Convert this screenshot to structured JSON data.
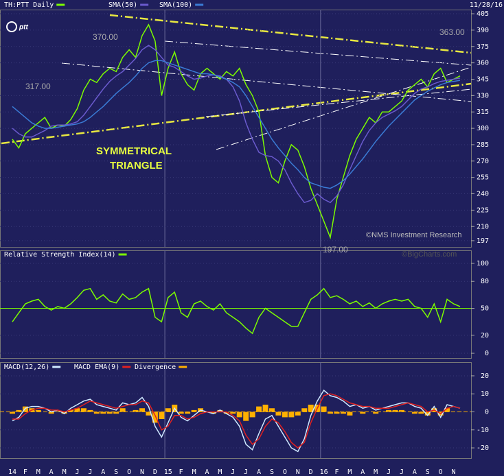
{
  "chart_data": [
    {
      "type": "line",
      "subtitle": "11/28/16",
      "logo": "ptt",
      "ylim": [
        191.3,
        408.8
      ],
      "yticks": [
        197,
        210,
        225,
        240,
        255,
        270,
        285,
        300,
        315,
        330,
        345,
        360,
        375,
        390,
        405
      ],
      "grid": true,
      "series": [
        {
          "name": "TH:PTT Daily",
          "color": "#7cfc00",
          "values": [
            290,
            282,
            295,
            300,
            305,
            310,
            300,
            303,
            302,
            308,
            318,
            335,
            345,
            342,
            350,
            355,
            352,
            365,
            372,
            365,
            385,
            395,
            380,
            330,
            355,
            370,
            350,
            340,
            335,
            350,
            355,
            350,
            345,
            352,
            348,
            355,
            340,
            330,
            315,
            275,
            255,
            250,
            270,
            285,
            280,
            265,
            245,
            230,
            215,
            200,
            235,
            255,
            275,
            290,
            300,
            310,
            305,
            315,
            315,
            320,
            325,
            335,
            340,
            345,
            338,
            350,
            355,
            342,
            345,
            348
          ]
        },
        {
          "name": "SMA(50)",
          "color": "#6a5acd",
          "values": [
            300,
            295,
            292,
            292,
            295,
            298,
            302,
            303,
            303,
            304,
            306,
            312,
            320,
            328,
            336,
            343,
            348,
            352,
            358,
            364,
            372,
            376,
            372,
            365,
            358,
            356,
            352,
            348,
            345,
            346,
            348,
            349,
            348,
            345,
            338,
            325,
            305,
            290,
            278,
            275,
            274,
            270,
            262,
            250,
            240,
            232,
            234,
            240,
            235,
            232,
            238,
            248,
            262,
            275,
            288,
            298,
            305,
            310,
            313,
            316,
            320,
            326,
            332,
            336,
            338,
            341,
            343,
            344,
            345,
            346
          ]
        },
        {
          "name": "SMA(100)",
          "color": "#3a7bd5",
          "values": [
            320,
            315,
            310,
            305,
            302,
            300,
            300,
            301,
            302,
            303,
            304,
            306,
            310,
            315,
            320,
            326,
            332,
            337,
            342,
            348,
            355,
            360,
            362,
            362,
            360,
            358,
            356,
            354,
            352,
            350,
            350,
            349,
            347,
            345,
            342,
            338,
            330,
            320,
            310,
            300,
            290,
            282,
            275,
            268,
            262,
            255,
            250,
            248,
            246,
            245,
            248,
            252,
            258,
            265,
            272,
            280,
            288,
            295,
            302,
            308,
            314,
            320,
            326,
            330,
            334,
            337,
            340,
            342,
            343,
            344
          ]
        }
      ],
      "annotations": [
        "370.00",
        "317.00",
        "197.00",
        "363.00",
        "SYMMETRICAL",
        "TRIANGLE",
        "©NMS Investment Research"
      ]
    },
    {
      "type": "line",
      "ylim": [
        -5.3,
        114.5
      ],
      "yticks": [
        0,
        20,
        50,
        80,
        100
      ],
      "hline": 50,
      "grid": true,
      "series": [
        {
          "name": "Relative Strength Index(14)",
          "color": "#7cfc00",
          "values": [
            35,
            45,
            55,
            58,
            60,
            52,
            48,
            52,
            50,
            55,
            62,
            70,
            72,
            60,
            65,
            58,
            56,
            66,
            60,
            62,
            68,
            72,
            40,
            35,
            62,
            68,
            45,
            40,
            55,
            58,
            52,
            48,
            55,
            45,
            40,
            35,
            28,
            22,
            40,
            50,
            45,
            40,
            35,
            30,
            30,
            45,
            60,
            65,
            72,
            62,
            64,
            60,
            55,
            58,
            52,
            56,
            50,
            55,
            58,
            60,
            58,
            60,
            52,
            50,
            40,
            55,
            35,
            60,
            55,
            52
          ]
        }
      ],
      "annotations": [
        "©BigCharts.com"
      ]
    },
    {
      "type": "line",
      "ylim": [
        -25.7,
        27.6
      ],
      "yticks": [
        -20,
        -10,
        0,
        10,
        20
      ],
      "hline": 0,
      "grid": true,
      "categories": [
        "14",
        null,
        "F",
        null,
        "M",
        null,
        "A",
        null,
        "M",
        null,
        "J",
        null,
        "J",
        null,
        "A",
        null,
        "S",
        null,
        "O",
        null,
        "N",
        null,
        "D",
        null,
        "15",
        null,
        "F",
        null,
        "M",
        null,
        "A",
        null,
        "M",
        null,
        "J",
        null,
        "J",
        null,
        "A",
        null,
        "S",
        null,
        "O",
        null,
        "N",
        null,
        "D",
        null,
        "16",
        null,
        "F",
        null,
        "M",
        null,
        "A",
        null,
        "M",
        null,
        "J",
        null,
        "J",
        null,
        "A",
        null,
        "S",
        null,
        "O",
        null,
        "N",
        null
      ],
      "series": [
        {
          "name": "MACD(12,26)",
          "color": "#cfe8ff",
          "values": [
            -5,
            -3,
            2,
            3,
            3,
            2,
            0,
            1,
            -1,
            2,
            4,
            6,
            7,
            4,
            3,
            2,
            1,
            5,
            4,
            5,
            8,
            3,
            -8,
            -14,
            -6,
            2,
            -3,
            -5,
            -2,
            1,
            0,
            -1,
            1,
            -1,
            -3,
            -8,
            -18,
            -21,
            -12,
            -4,
            -2,
            -8,
            -14,
            -20,
            -22,
            -15,
            -2,
            6,
            12,
            9,
            8,
            6,
            3,
            4,
            2,
            3,
            1,
            2,
            3,
            4,
            5,
            5,
            3,
            2,
            -2,
            3,
            -3,
            4,
            3,
            2
          ]
        },
        {
          "name": "MACD EMA(9)",
          "color": "#e02020",
          "values": [
            -4,
            -4,
            -1,
            1,
            2,
            2,
            1,
            1,
            0,
            1,
            2,
            4,
            6,
            5,
            4,
            3,
            2,
            3,
            4,
            4,
            6,
            5,
            -2,
            -10,
            -8,
            -2,
            -2,
            -4,
            -3,
            -1,
            0,
            0,
            0,
            0,
            -2,
            -5,
            -13,
            -18,
            -15,
            -8,
            -4,
            -6,
            -11,
            -17,
            -20,
            -17,
            -6,
            2,
            9,
            10,
            9,
            7,
            5,
            4,
            3,
            3,
            2,
            2,
            2,
            3,
            4,
            5,
            4,
            3,
            0,
            1,
            -1,
            2,
            3,
            2
          ]
        },
        {
          "name": "Divergence",
          "color": "#ffb000",
          "type": "bar",
          "values": [
            -1,
            1,
            3,
            2,
            1,
            0,
            -1,
            0,
            -1,
            1,
            2,
            2,
            1,
            -1,
            -1,
            -1,
            -1,
            2,
            0,
            1,
            2,
            -2,
            -6,
            -4,
            2,
            4,
            -1,
            -1,
            1,
            2,
            0,
            -1,
            1,
            -1,
            -1,
            -3,
            -5,
            -3,
            3,
            4,
            2,
            -2,
            -3,
            -3,
            -2,
            2,
            4,
            4,
            3,
            -1,
            -1,
            -1,
            -2,
            0,
            -1,
            0,
            -1,
            0,
            1,
            1,
            1,
            0,
            -1,
            -1,
            -2,
            2,
            -2,
            2,
            0,
            0
          ]
        }
      ]
    }
  ]
}
